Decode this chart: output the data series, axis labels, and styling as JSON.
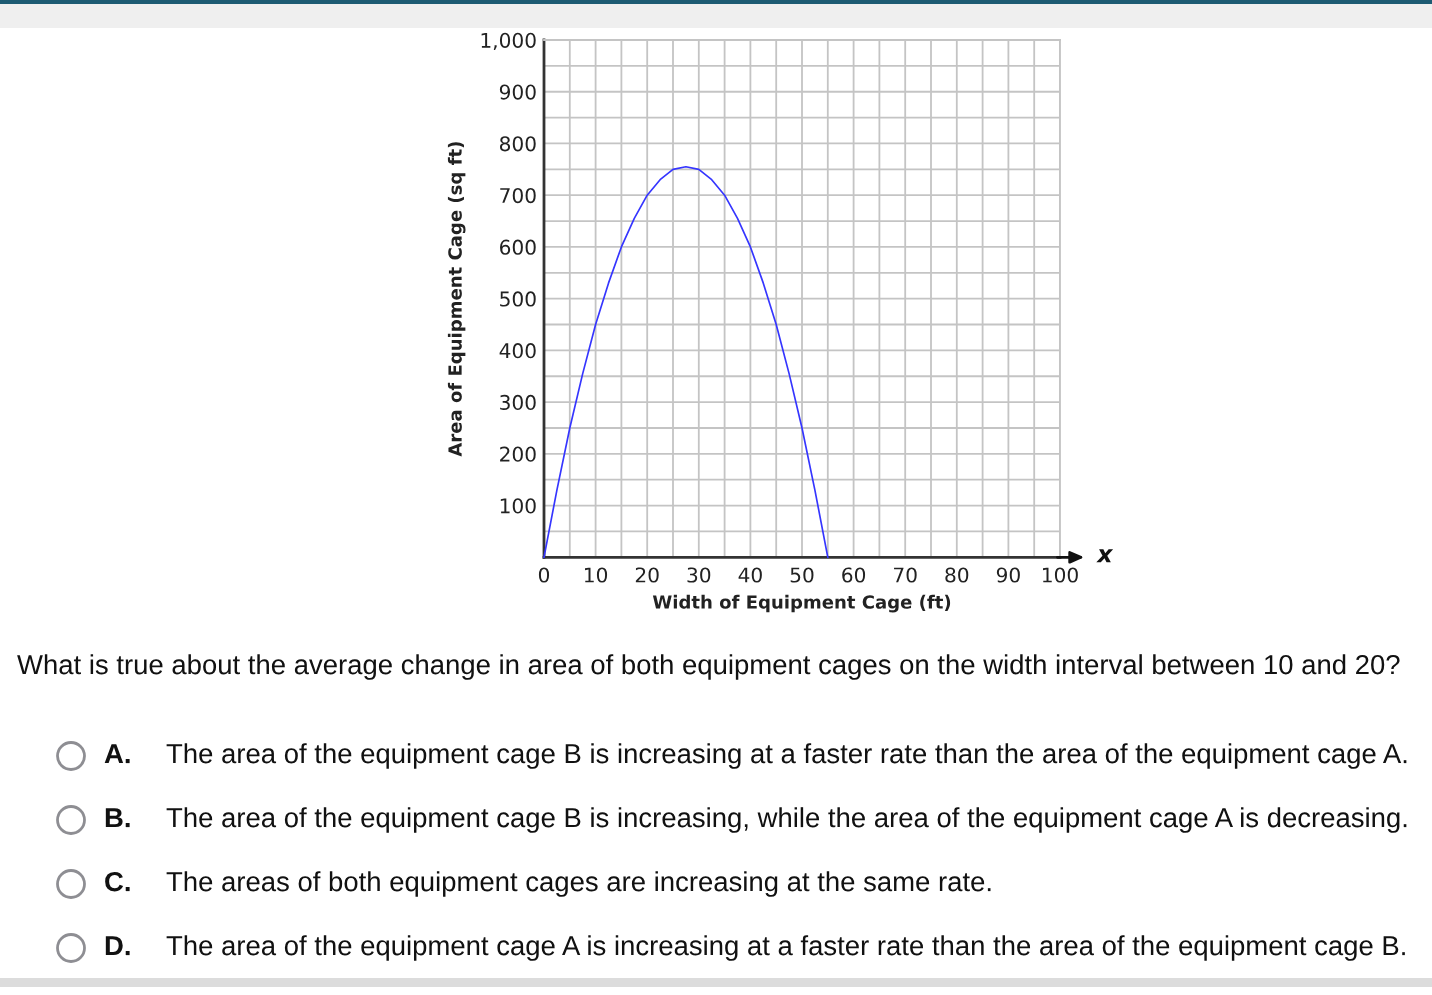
{
  "chart_data": {
    "type": "line",
    "xlabel": "Width of Equipment Cage (ft)",
    "ylabel": "Area of Equipment Cage (sq ft)",
    "x": [
      0,
      2.5,
      5,
      7.5,
      10,
      12.5,
      15,
      17.5,
      20,
      22.5,
      25,
      27.5,
      30,
      32.5,
      35,
      37.5,
      40,
      42.5,
      45,
      47.5,
      50,
      52.5,
      55
    ],
    "series": [
      {
        "color": "#3535ff",
        "values": [
          0,
          130,
          250,
          355,
          450,
          530,
          600,
          655,
          700,
          730,
          750,
          755,
          750,
          730,
          700,
          655,
          600,
          530,
          450,
          355,
          250,
          130,
          0
        ]
      }
    ],
    "xlim": [
      0,
      100
    ],
    "ylim": [
      0,
      1000
    ],
    "xticks": [
      0,
      {
        "value": 5,
        "label": null
      },
      10,
      {
        "value": 15,
        "label": null
      },
      20,
      {
        "value": 25,
        "label": null
      },
      30,
      {
        "value": 35,
        "label": null
      },
      40,
      {
        "value": 45,
        "label": null
      },
      50,
      {
        "value": 55,
        "label": null
      },
      60,
      {
        "value": 65,
        "label": null
      },
      70,
      {
        "value": 75,
        "label": null
      },
      80,
      {
        "value": 85,
        "label": null
      },
      90,
      {
        "value": 95,
        "label": null
      },
      100
    ],
    "yticks": [
      {
        "value": 0,
        "label": null
      },
      {
        "value": 50,
        "label": null
      },
      100,
      {
        "value": 150,
        "label": null
      },
      200,
      {
        "value": 250,
        "label": null
      },
      300,
      {
        "value": 350,
        "label": null
      },
      400,
      {
        "value": 450,
        "label": null
      },
      500,
      {
        "value": 550,
        "label": null
      },
      600,
      {
        "value": 650,
        "label": null
      },
      700,
      {
        "value": 750,
        "label": null
      },
      800,
      {
        "value": 850,
        "label": null
      },
      900,
      {
        "value": 950,
        "label": null
      },
      {
        "value": 1000,
        "label": "1,000"
      }
    ],
    "grid": true,
    "marker": "none",
    "line_style": "solid",
    "annotations": [
      "x",
      "What is true about the average change in area of both equipment cages on the width interval between 10 and 20?",
      "A.",
      "The area of the equipment cage B is increasing at a faster rate than the area of the equipment cage A.",
      "B.",
      "The area of the equipment cage B is increasing, while the area of the equipment cage A is decreasing.",
      "C.",
      "The areas of both equipment cages are increasing at the same rate.",
      "D.",
      "The area of the equipment cage A is increasing at a faster rate than the area of the equipment cage B."
    ]
  }
}
